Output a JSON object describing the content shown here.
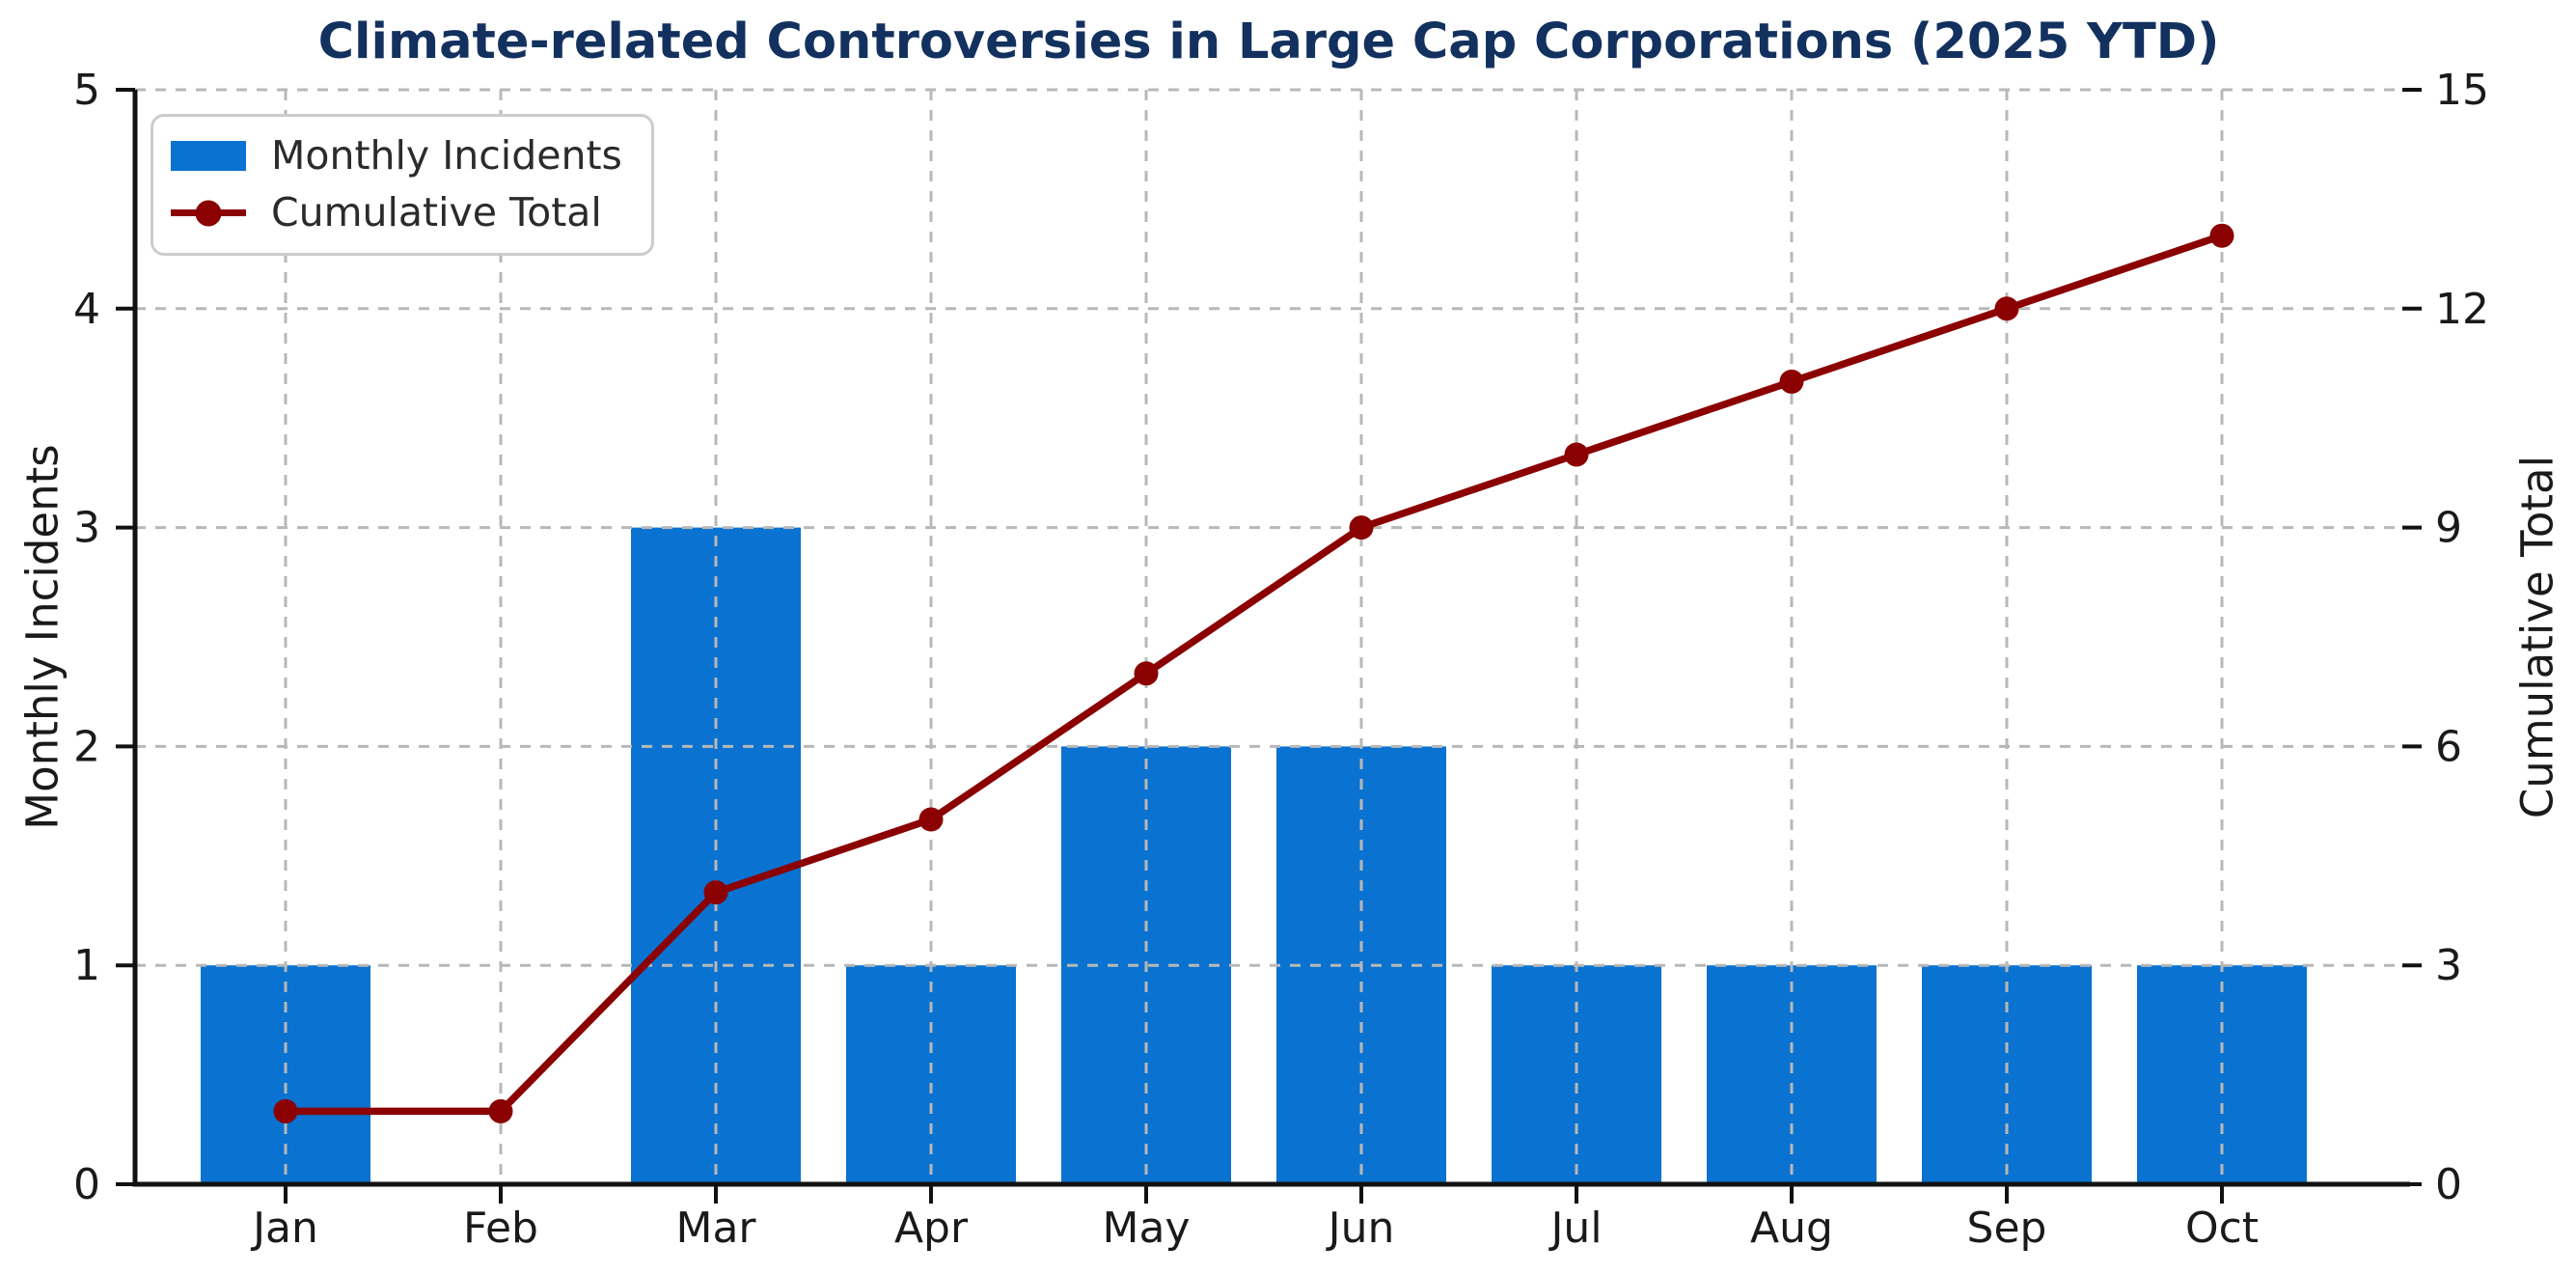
{
  "chart": {
    "title": "Climate-related Controversies in Large Cap Corporations (2025 YTD)",
    "title_color": "#13315f",
    "ylabel_left": "Monthly Incidents",
    "ylabel_right": "Cumulative Total"
  },
  "legend": {
    "items": [
      {
        "label": "Monthly Incidents",
        "marker": "bar-swatch",
        "color": "#0a72d0"
      },
      {
        "label": "Cumulative Total",
        "marker": "line-dot",
        "color": "#8b0000"
      }
    ]
  },
  "colors": {
    "bar": "#0a72d0",
    "line": "#8b0000",
    "grid": "#b8b8b8",
    "spine": "#111111",
    "tick_label": "#1a1a1a",
    "background": "#ffffff"
  },
  "chart_data": {
    "type": "bar",
    "combo": [
      "bar",
      "line"
    ],
    "title": "Climate-related Controversies in Large Cap Corporations (2025 YTD)",
    "categories": [
      "Jan",
      "Feb",
      "Mar",
      "Apr",
      "May",
      "Jun",
      "Jul",
      "Aug",
      "Sep",
      "Oct"
    ],
    "series": [
      {
        "name": "Monthly Incidents",
        "type": "bar",
        "axis": "left",
        "color": "#0a72d0",
        "values": [
          1,
          0,
          3,
          1,
          2,
          2,
          1,
          1,
          1,
          1
        ]
      },
      {
        "name": "Cumulative Total",
        "type": "line",
        "axis": "right",
        "color": "#8b0000",
        "marker": "circle",
        "values": [
          1,
          1,
          4,
          5,
          7,
          9,
          10,
          11,
          12,
          13
        ]
      }
    ],
    "xlabel": "",
    "ylabel_left": "Monthly Incidents",
    "ylabel_right": "Cumulative Total",
    "ylim_left": [
      0,
      5
    ],
    "ylim_right": [
      0,
      15
    ],
    "yticks_left": [
      0,
      1,
      2,
      3,
      4,
      5
    ],
    "yticks_right": [
      0,
      3,
      6,
      9,
      12,
      15
    ],
    "grid": true,
    "grid_style": "dashed",
    "grid_above_bars": true,
    "legend_position": "upper-left",
    "spines": [
      "left",
      "bottom"
    ]
  }
}
